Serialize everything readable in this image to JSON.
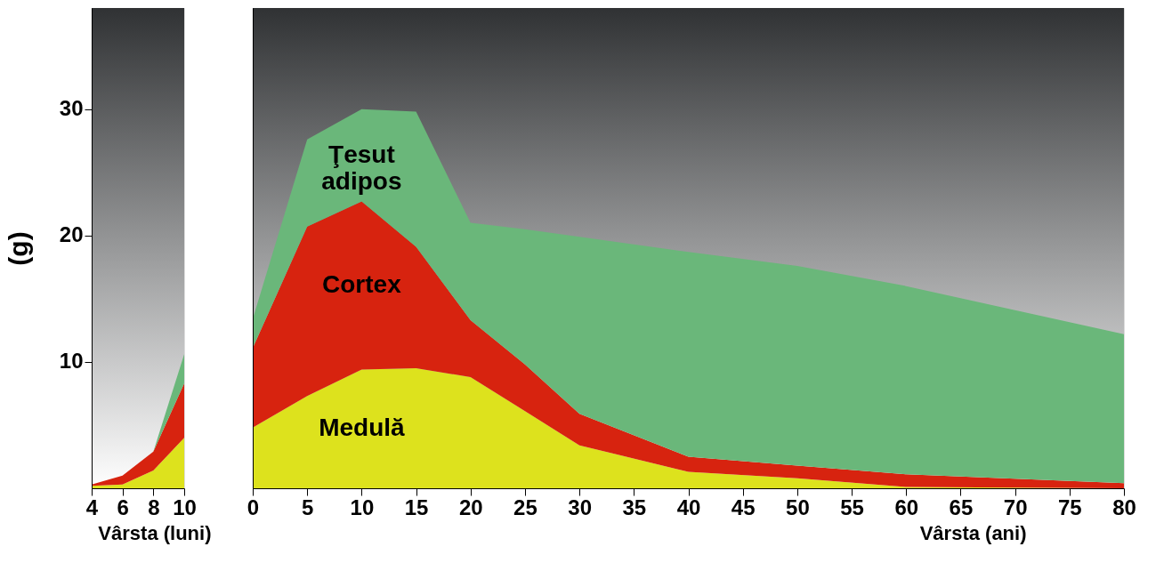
{
  "chart_data": [
    {
      "type": "area",
      "stacked": true,
      "x": [
        4,
        6,
        8,
        10
      ],
      "xlim": [
        4,
        10
      ],
      "xticks": [
        4,
        6,
        8,
        10
      ],
      "ylim": [
        0,
        38
      ],
      "yticks": [
        10,
        20,
        30
      ],
      "xlabel": "Vârsta (luni)",
      "ylabel": "(g)",
      "grid": false,
      "legend": false,
      "series": [
        {
          "color": "#dde21d",
          "values": [
            0.2,
            0.3,
            1.4,
            4.0
          ]
        },
        {
          "color": "#d7230f",
          "values": [
            0.1,
            0.7,
            1.5,
            4.3
          ]
        },
        {
          "color": "#6ab77a",
          "values": [
            0,
            0,
            0,
            2.3
          ]
        }
      ]
    },
    {
      "type": "area",
      "stacked": true,
      "x": [
        0,
        5,
        10,
        15,
        20,
        25,
        30,
        40,
        50,
        60,
        80
      ],
      "xlim": [
        0,
        80
      ],
      "xticks": [
        0,
        5,
        10,
        15,
        20,
        25,
        30,
        35,
        40,
        45,
        50,
        55,
        60,
        65,
        70,
        75,
        80
      ],
      "ylim": [
        0,
        38
      ],
      "xlabel": "Vârsta (ani)",
      "tick_labels": "x",
      "grid": false,
      "legend": false,
      "series": [
        {
          "name": "Medulă",
          "color": "#dde21d",
          "values": [
            4.8,
            7.3,
            9.4,
            9.5,
            8.8,
            6.1,
            3.4,
            1.3,
            0.8,
            0.1,
            0
          ]
        },
        {
          "name": "Cortex",
          "color": "#d7230f",
          "values": [
            6.3,
            13.4,
            13.3,
            9.6,
            4.5,
            3.7,
            2.5,
            1.2,
            1.0,
            1.0,
            0.4
          ]
        },
        {
          "name": "Ţesut adipos",
          "color": "#6ab77a",
          "values": [
            2.3,
            6.9,
            7.3,
            10.7,
            7.7,
            10.7,
            14.0,
            16.2,
            15.8,
            14.9,
            11.8
          ]
        }
      ]
    }
  ]
}
